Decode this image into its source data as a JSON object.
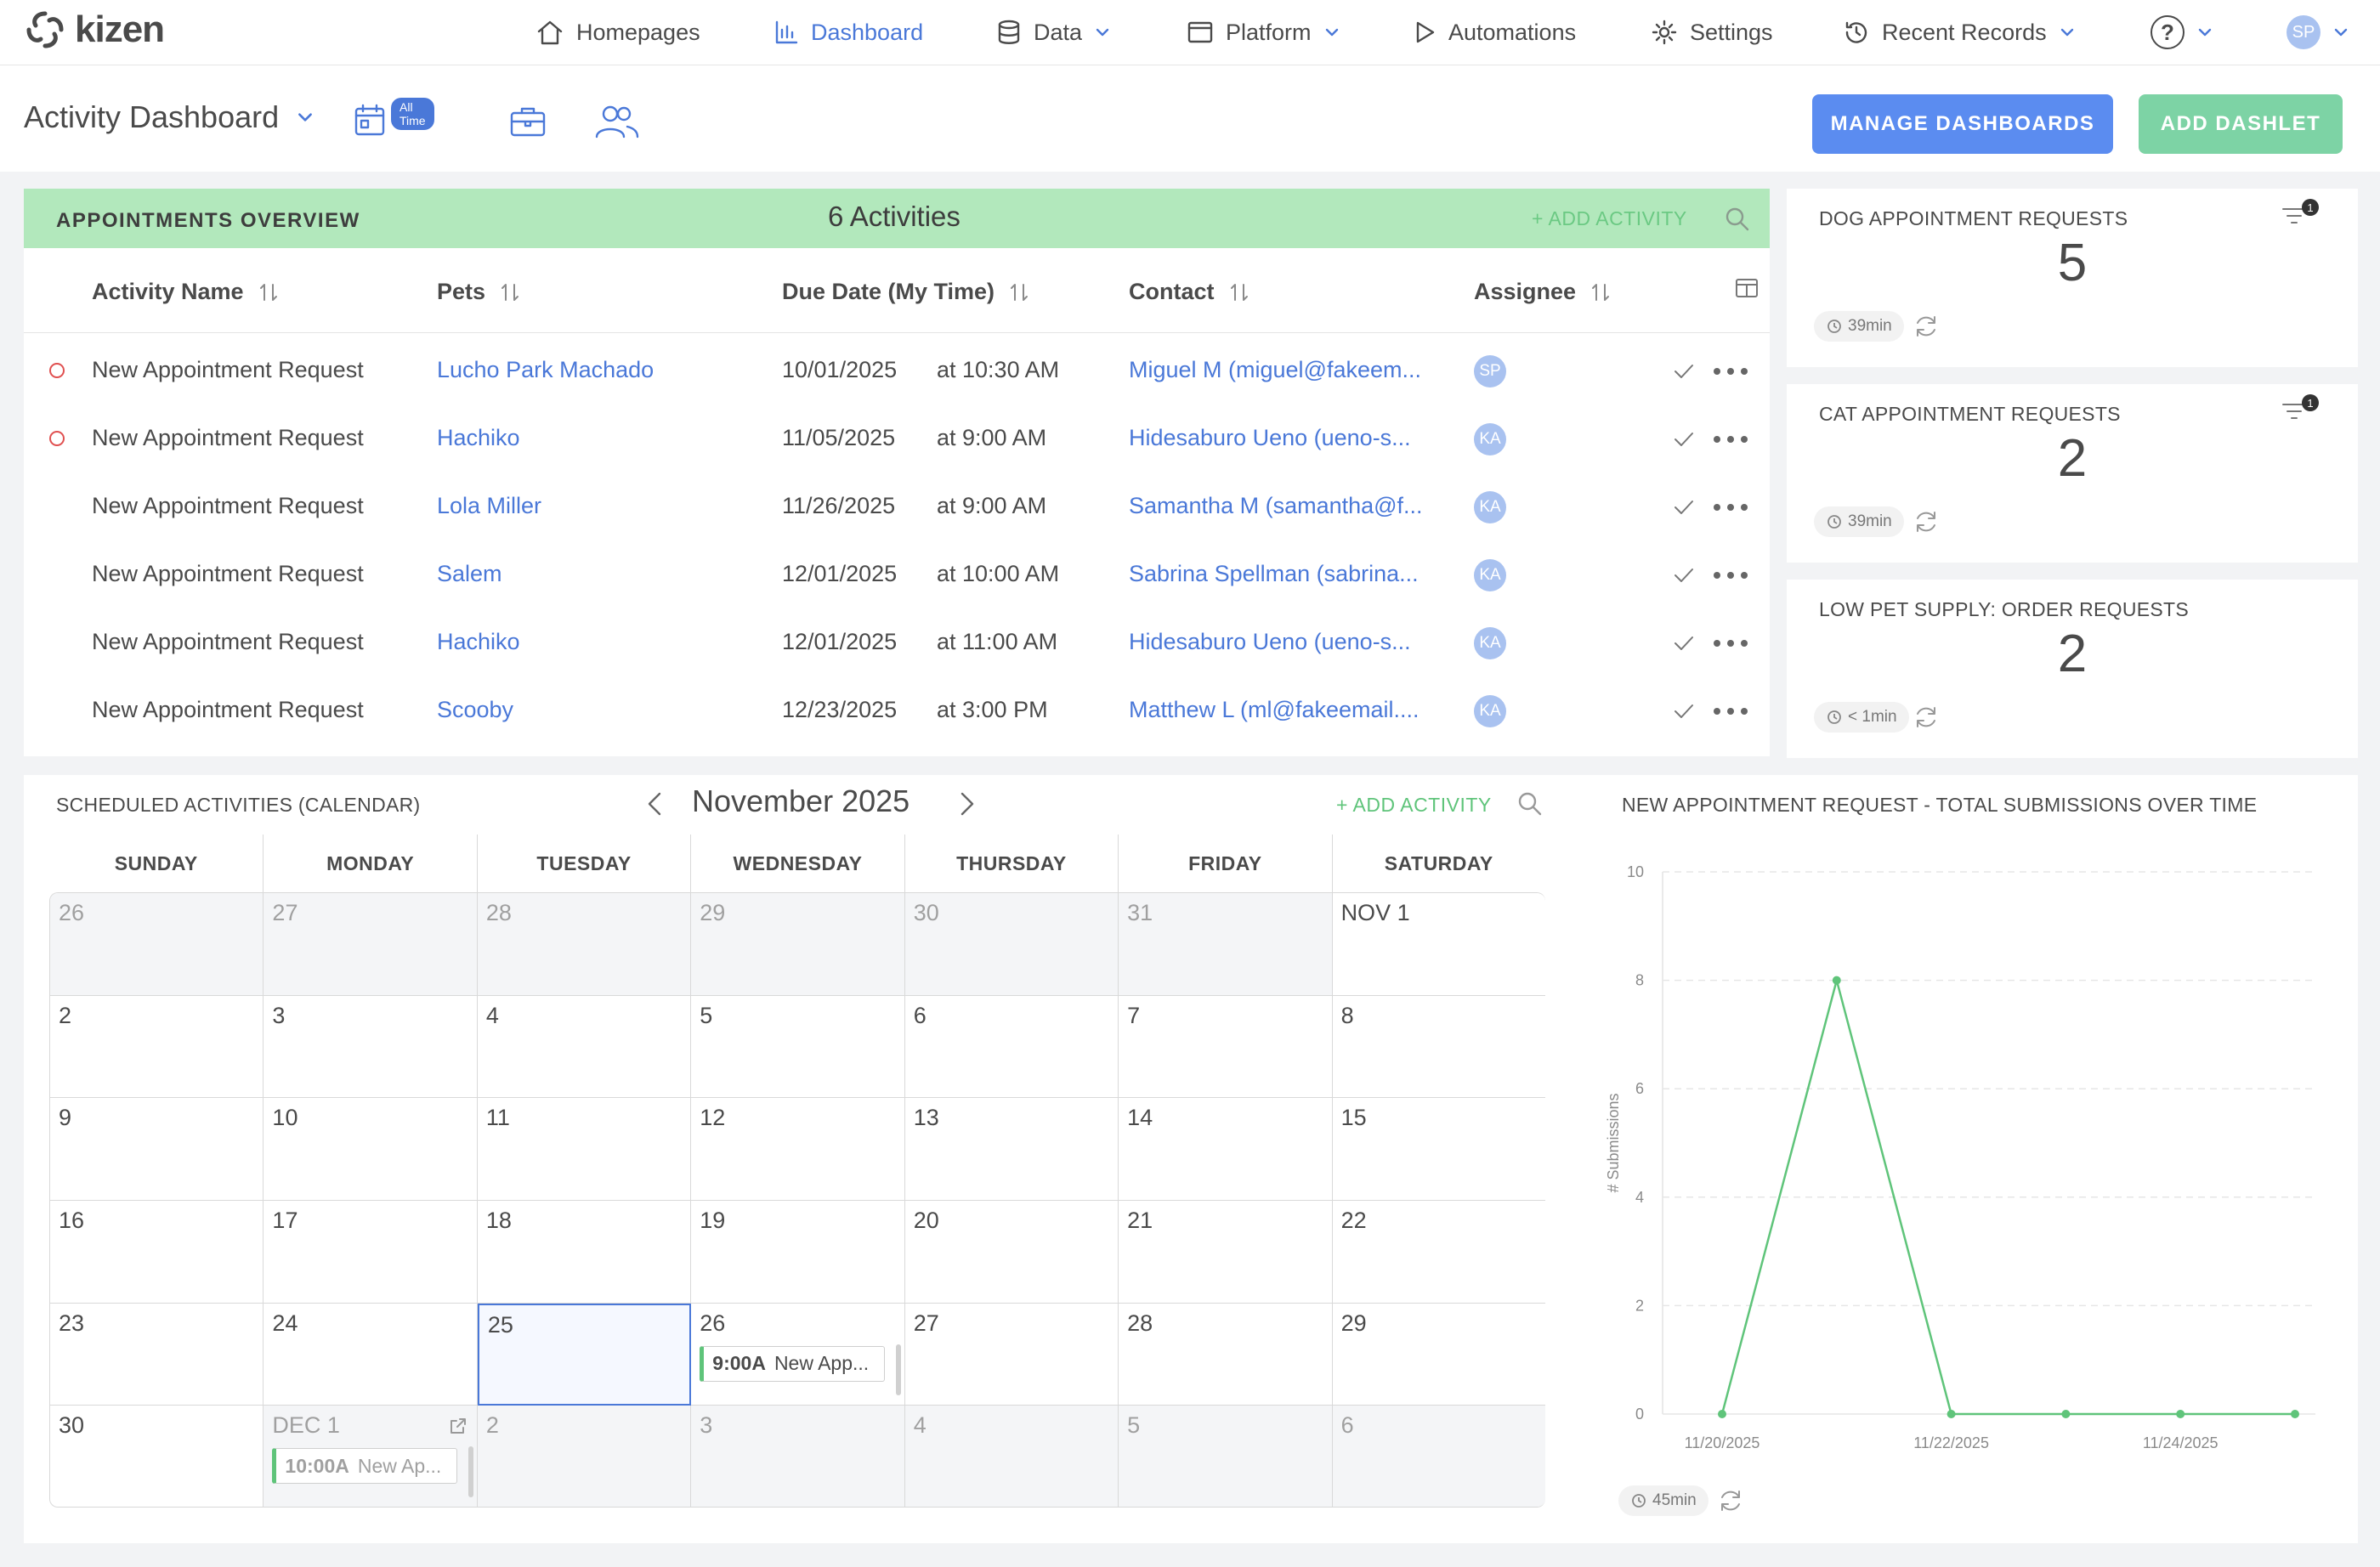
{
  "brand": {
    "name": "kizen"
  },
  "nav": {
    "items": [
      {
        "label": "Homepages",
        "icon": "home-icon"
      },
      {
        "label": "Dashboard",
        "icon": "dashboard-icon",
        "active": true
      },
      {
        "label": "Data",
        "icon": "database-icon",
        "dropdown": true
      },
      {
        "label": "Platform",
        "icon": "window-icon",
        "dropdown": true
      },
      {
        "label": "Automations",
        "icon": "play-icon"
      },
      {
        "label": "Settings",
        "icon": "gear-icon"
      },
      {
        "label": "Recent Records",
        "icon": "history-icon",
        "dropdown": true
      }
    ],
    "help_symbol": "?",
    "user_initials": "SP"
  },
  "header": {
    "title": "Activity Dashboard",
    "date_badge": "All Time",
    "manage_label": "MANAGE DASHBOARDS",
    "add_label": "ADD DASHLET",
    "colors": {
      "manage": "#5b8cf0",
      "add": "#7dd3a5"
    }
  },
  "appointments": {
    "title": "APPOINTMENTS OVERVIEW",
    "count_label": "6 Activities",
    "add_label": "+ ADD ACTIVITY",
    "columns": [
      "Activity Name",
      "Pets",
      "Due Date (My Time)",
      "Contact",
      "Assignee"
    ],
    "rows": [
      {
        "overdue": true,
        "name": "New Appointment Request",
        "pet": "Lucho Park Machado",
        "date": "10/01/2025",
        "time": "at 10:30 AM",
        "contact": "Miguel M (miguel@fakeem...",
        "assignee": "SP"
      },
      {
        "overdue": true,
        "name": "New Appointment Request",
        "pet": "Hachiko",
        "date": "11/05/2025",
        "time": "at 9:00 AM",
        "contact": "Hidesaburo Ueno (ueno-s...",
        "assignee": "KA"
      },
      {
        "overdue": false,
        "name": "New Appointment Request",
        "pet": "Lola Miller",
        "date": "11/26/2025",
        "time": "at 9:00 AM",
        "contact": "Samantha M (samantha@f...",
        "assignee": "KA"
      },
      {
        "overdue": false,
        "name": "New Appointment Request",
        "pet": "Salem",
        "date": "12/01/2025",
        "time": "at 10:00 AM",
        "contact": "Sabrina Spellman (sabrina...",
        "assignee": "KA"
      },
      {
        "overdue": false,
        "name": "New Appointment Request",
        "pet": "Hachiko",
        "date": "12/01/2025",
        "time": "at 11:00 AM",
        "contact": "Hidesaburo Ueno (ueno-s...",
        "assignee": "KA"
      },
      {
        "overdue": false,
        "name": "New Appointment Request",
        "pet": "Scooby",
        "date": "12/23/2025",
        "time": "at 3:00 PM",
        "contact": "Matthew L (ml@fakeemail....",
        "assignee": "KA"
      }
    ]
  },
  "kpis": [
    {
      "title": "DOG APPOINTMENT REQUESTS",
      "value": "5",
      "refresh": "39min",
      "filter_count": "1"
    },
    {
      "title": "CAT APPOINTMENT REQUESTS",
      "value": "2",
      "refresh": "39min",
      "filter_count": "1"
    },
    {
      "title": "LOW PET SUPPLY: ORDER REQUESTS",
      "value": "2",
      "refresh": "< 1min"
    }
  ],
  "calendar": {
    "title": "SCHEDULED ACTIVITIES (CALENDAR)",
    "month": "November 2025",
    "add_label": "+ ADD ACTIVITY",
    "weekdays": [
      "SUNDAY",
      "MONDAY",
      "TUESDAY",
      "WEDNESDAY",
      "THURSDAY",
      "FRIDAY",
      "SATURDAY"
    ],
    "weeks": [
      [
        {
          "d": "26",
          "dim": true
        },
        {
          "d": "27",
          "dim": true
        },
        {
          "d": "28",
          "dim": true
        },
        {
          "d": "29",
          "dim": true
        },
        {
          "d": "30",
          "dim": true
        },
        {
          "d": "31",
          "dim": true
        },
        {
          "d": "NOV 1"
        }
      ],
      [
        {
          "d": "2"
        },
        {
          "d": "3"
        },
        {
          "d": "4"
        },
        {
          "d": "5"
        },
        {
          "d": "6"
        },
        {
          "d": "7"
        },
        {
          "d": "8"
        }
      ],
      [
        {
          "d": "9"
        },
        {
          "d": "10"
        },
        {
          "d": "11"
        },
        {
          "d": "12"
        },
        {
          "d": "13"
        },
        {
          "d": "14"
        },
        {
          "d": "15"
        }
      ],
      [
        {
          "d": "16"
        },
        {
          "d": "17"
        },
        {
          "d": "18"
        },
        {
          "d": "19"
        },
        {
          "d": "20"
        },
        {
          "d": "21"
        },
        {
          "d": "22"
        }
      ],
      [
        {
          "d": "23"
        },
        {
          "d": "24"
        },
        {
          "d": "25",
          "today": true
        },
        {
          "d": "26",
          "event": {
            "time": "9:00A",
            "label": "New App..."
          }
        },
        {
          "d": "27"
        },
        {
          "d": "28"
        },
        {
          "d": "29"
        }
      ],
      [
        {
          "d": "30"
        },
        {
          "d": "DEC 1",
          "dim": true,
          "event": {
            "time": "10:00A",
            "label": "New Ap..."
          }
        },
        {
          "d": "2",
          "dim": true
        },
        {
          "d": "3",
          "dim": true
        },
        {
          "d": "4",
          "dim": true
        },
        {
          "d": "5",
          "dim": true
        },
        {
          "d": "6",
          "dim": true
        }
      ]
    ]
  },
  "chart_card": {
    "title": "NEW APPOINTMENT REQUEST - TOTAL SUBMISSIONS OVER TIME",
    "refresh": "45min"
  },
  "chart_data": {
    "type": "line",
    "title": "NEW APPOINTMENT REQUEST - TOTAL SUBMISSIONS OVER TIME",
    "ylabel": "# Submissions",
    "xlabel": "",
    "ylim": [
      0,
      10
    ],
    "yticks": [
      0,
      2,
      4,
      6,
      8,
      10
    ],
    "xticks": [
      "11/20/2025",
      "11/22/2025",
      "11/24/2025"
    ],
    "x": [
      "11/20/2025",
      "11/21/2025",
      "11/22/2025",
      "11/23/2025",
      "11/24/2025",
      "11/25/2025"
    ],
    "series": [
      {
        "values": [
          0,
          8,
          0,
          0,
          0,
          0
        ],
        "color": "#5fc47a"
      }
    ],
    "grid": true
  }
}
